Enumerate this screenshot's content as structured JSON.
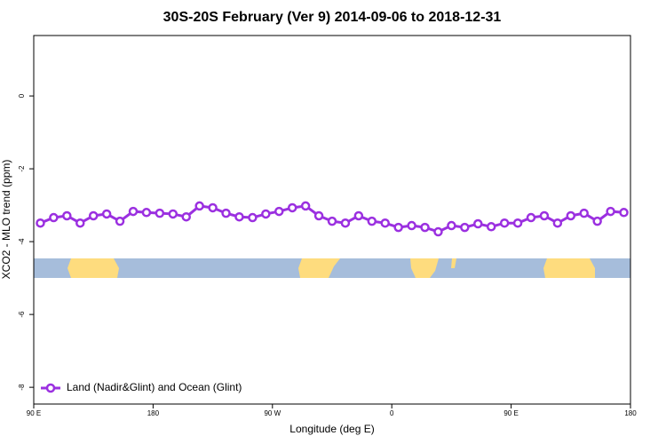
{
  "chart_data": {
    "type": "line",
    "title": "30S-20S February (Ver 9)   2014-09-06 to 2018-12-31",
    "xlabel": "Longitude (deg E)",
    "ylabel": "XCO2 - MLO trend (ppm)",
    "x": [
      95,
      105,
      115,
      125,
      135,
      145,
      155,
      165,
      175,
      185,
      195,
      205,
      215,
      225,
      235,
      245,
      255,
      265,
      275,
      285,
      295,
      305,
      315,
      325,
      335,
      345,
      355,
      365,
      375,
      385,
      395,
      405,
      415,
      425,
      435,
      445,
      455,
      465,
      475,
      485,
      495,
      505,
      515,
      525,
      535
    ],
    "series": [
      {
        "name": "Land (Nadir&Glint) and Ocean (Glint)",
        "color": "#9b30e0",
        "values": [
          -3.49,
          -3.34,
          -3.29,
          -3.49,
          -3.29,
          -3.24,
          -3.44,
          -3.17,
          -3.2,
          -3.22,
          -3.24,
          -3.32,
          -3.02,
          -3.07,
          -3.22,
          -3.32,
          -3.34,
          -3.24,
          -3.17,
          -3.07,
          -3.02,
          -3.29,
          -3.44,
          -3.49,
          -3.29,
          -3.44,
          -3.49,
          -3.61,
          -3.56,
          -3.61,
          -3.73,
          -3.56,
          -3.61,
          -3.51,
          -3.59,
          -3.49,
          -3.49,
          -3.34,
          -3.29,
          -3.49,
          -3.29,
          -3.22,
          -3.44,
          -3.17,
          -3.2
        ]
      }
    ],
    "xlim": [
      90,
      540
    ],
    "xticks": [
      {
        "value": 90,
        "label": "90 E"
      },
      180,
      {
        "value": 270,
        "label": "90 W"
      },
      {
        "value": 360,
        "label": "0"
      },
      {
        "value": 450,
        "label": "90 E"
      },
      {
        "value": 540,
        "label": "180"
      }
    ],
    "ylim": [
      -8.46,
      1.66
    ],
    "yticks": [
      0,
      -2,
      -4,
      -6,
      -8
    ],
    "legend": "bottom-left"
  }
}
